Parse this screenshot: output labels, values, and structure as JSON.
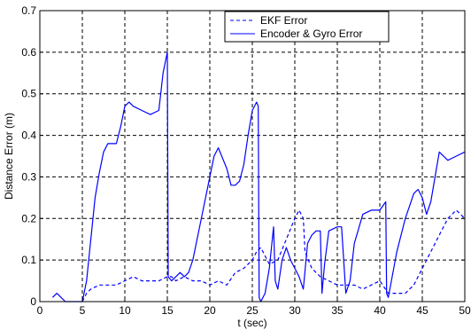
{
  "chart_data": {
    "type": "line",
    "title": "",
    "xlabel": "t (sec)",
    "ylabel": "Distance Error (m)",
    "xlim": [
      0,
      50
    ],
    "ylim": [
      0,
      0.7
    ],
    "x_ticks": [
      "0",
      "5",
      "10",
      "15",
      "20",
      "25",
      "30",
      "35",
      "40",
      "45",
      "50"
    ],
    "y_ticks": [
      "0",
      "0.1",
      "0.2",
      "0.3",
      "0.4",
      "0.5",
      "0.6",
      "0.7"
    ],
    "grid": true,
    "legend_position": "top-right",
    "series": [
      {
        "name": "EKF Error",
        "style": "dashed",
        "color": "#0000ff",
        "x": [
          5.0,
          5.5,
          6.0,
          7.0,
          8.0,
          9.0,
          10.0,
          11.0,
          12.0,
          13.0,
          14.0,
          15.0,
          15.5,
          16.0,
          17.0,
          18.0,
          19.0,
          20.0,
          21.0,
          22.0,
          23.0,
          24.0,
          25.0,
          25.5,
          26.0,
          26.5,
          27.0,
          28.0,
          29.0,
          30.0,
          30.5,
          31.0,
          31.2,
          32.0,
          33.0,
          34.0,
          35.0,
          36.0,
          37.0,
          38.0,
          39.0,
          40.0,
          41.0,
          42.0,
          43.0,
          44.0,
          45.0,
          46.0,
          47.0,
          48.0,
          49.0,
          50.0
        ],
        "y": [
          0.0,
          0.02,
          0.03,
          0.04,
          0.04,
          0.04,
          0.05,
          0.06,
          0.05,
          0.05,
          0.05,
          0.06,
          0.06,
          0.05,
          0.06,
          0.05,
          0.05,
          0.04,
          0.05,
          0.04,
          0.07,
          0.08,
          0.1,
          0.12,
          0.13,
          0.11,
          0.09,
          0.1,
          0.15,
          0.2,
          0.22,
          0.2,
          0.12,
          0.08,
          0.06,
          0.05,
          0.04,
          0.04,
          0.04,
          0.03,
          0.04,
          0.05,
          0.02,
          0.02,
          0.02,
          0.04,
          0.08,
          0.12,
          0.16,
          0.2,
          0.22,
          0.2
        ]
      },
      {
        "name": "Encoder & Gyro Error",
        "style": "solid",
        "color": "#0000ff",
        "x": [
          1.5,
          2.0,
          2.5,
          3.0,
          4.0,
          5.0,
          5.5,
          6.0,
          6.5,
          7.0,
          7.5,
          8.0,
          8.5,
          9.0,
          9.5,
          10.0,
          10.5,
          11.0,
          12.0,
          13.0,
          14.0,
          14.5,
          15.0,
          15.1,
          15.5,
          16.0,
          16.5,
          17.0,
          17.5,
          18.0,
          19.0,
          20.0,
          20.5,
          21.0,
          22.0,
          22.5,
          23.0,
          23.5,
          24.0,
          24.5,
          25.0,
          25.5,
          25.7,
          25.8,
          26.0,
          26.5,
          27.0,
          27.5,
          27.7,
          28.0,
          28.5,
          29.0,
          29.5,
          30.0,
          30.5,
          31.0,
          31.5,
          32.0,
          32.5,
          33.0,
          33.2,
          33.5,
          34.0,
          35.0,
          35.5,
          36.0,
          36.5,
          37.0,
          38.0,
          39.0,
          40.0,
          40.7,
          40.8,
          41.0,
          42.0,
          43.0,
          44.0,
          44.5,
          45.0,
          45.5,
          46.0,
          46.5,
          47.0,
          48.0,
          49.0,
          50.0
        ],
        "y": [
          0.01,
          0.02,
          0.01,
          0.0,
          0.0,
          0.0,
          0.05,
          0.15,
          0.25,
          0.31,
          0.36,
          0.38,
          0.38,
          0.38,
          0.42,
          0.47,
          0.48,
          0.47,
          0.46,
          0.45,
          0.46,
          0.55,
          0.6,
          0.06,
          0.05,
          0.06,
          0.07,
          0.06,
          0.07,
          0.1,
          0.2,
          0.3,
          0.35,
          0.37,
          0.32,
          0.28,
          0.28,
          0.29,
          0.33,
          0.4,
          0.46,
          0.48,
          0.47,
          0.01,
          0.0,
          0.02,
          0.08,
          0.18,
          0.05,
          0.03,
          0.1,
          0.13,
          0.1,
          0.08,
          0.06,
          0.03,
          0.14,
          0.16,
          0.17,
          0.17,
          0.02,
          0.09,
          0.17,
          0.18,
          0.18,
          0.02,
          0.05,
          0.14,
          0.21,
          0.22,
          0.22,
          0.24,
          0.02,
          0.01,
          0.12,
          0.2,
          0.26,
          0.27,
          0.25,
          0.21,
          0.24,
          0.3,
          0.36,
          0.34,
          0.35,
          0.36
        ]
      }
    ]
  }
}
